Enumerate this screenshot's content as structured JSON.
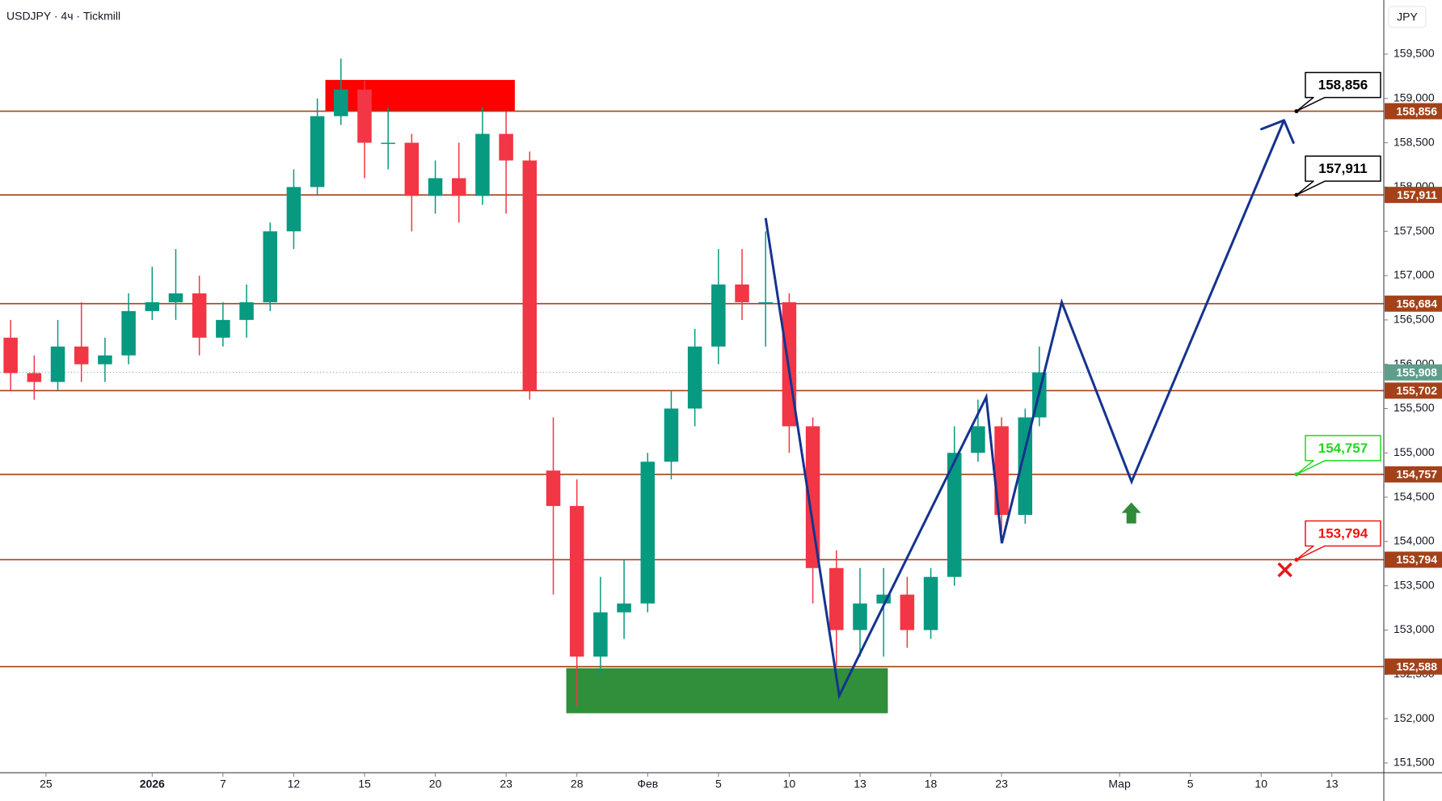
{
  "chart_data": {
    "type": "candlestick",
    "title": "USDJPY · 4ч · Tickmill",
    "currency": "JPY",
    "up_color": "#089981",
    "down_color": "#f23645",
    "xlim": [
      -1.95,
      56.7
    ],
    "ylim": [
      151390,
      160111
    ],
    "xticks": [
      {
        "value": 0,
        "label": "25"
      },
      {
        "value": 4.5,
        "label": "2026"
      },
      {
        "value": 7.5,
        "label": "7"
      },
      {
        "value": 10.5,
        "label": "12"
      },
      {
        "value": 13.5,
        "label": "15"
      },
      {
        "value": 16.5,
        "label": "20"
      },
      {
        "value": 19.5,
        "label": "23"
      },
      {
        "value": 22.5,
        "label": "28"
      },
      {
        "value": 25.5,
        "label": "Фев"
      },
      {
        "value": 28.5,
        "label": "5"
      },
      {
        "value": 31.5,
        "label": "10"
      },
      {
        "value": 34.5,
        "label": "13"
      },
      {
        "value": 37.5,
        "label": "18"
      },
      {
        "value": 40.5,
        "label": "23"
      },
      {
        "value": 45.5,
        "label": "Мар"
      },
      {
        "value": 48.5,
        "label": "5"
      },
      {
        "value": 51.5,
        "label": "10"
      },
      {
        "value": 54.5,
        "label": "13"
      }
    ],
    "yticks": [
      {
        "value": 151500,
        "label": "151,500"
      },
      {
        "value": 152000,
        "label": "152,000"
      },
      {
        "value": 152500,
        "label": "152,500"
      },
      {
        "value": 153000,
        "label": "153,000"
      },
      {
        "value": 153500,
        "label": "153,500"
      },
      {
        "value": 154000,
        "label": "154,000"
      },
      {
        "value": 154500,
        "label": "154,500"
      },
      {
        "value": 155000,
        "label": "155,000"
      },
      {
        "value": 155500,
        "label": "155,500"
      },
      {
        "value": 156000,
        "label": "156,000"
      },
      {
        "value": 156500,
        "label": "156,500"
      },
      {
        "value": 157000,
        "label": "157,000"
      },
      {
        "value": 157500,
        "label": "157,500"
      },
      {
        "value": 158000,
        "label": "158,000"
      },
      {
        "value": 158500,
        "label": "158,500"
      },
      {
        "value": 159000,
        "label": "159,000"
      },
      {
        "value": 159500,
        "label": "159,500"
      }
    ],
    "x": [
      -1.5,
      -0.5,
      0.5,
      1.5,
      2.5,
      3.5,
      4.5,
      5.5,
      6.5,
      7.5,
      8.5,
      9.5,
      10.5,
      11.5,
      12.5,
      13.5,
      14.5,
      15.5,
      16.5,
      17.5,
      18.5,
      19.5,
      20.5,
      21.5,
      22.5,
      23.5,
      24.5,
      25.5,
      26.5,
      27.5,
      28.5,
      29.5,
      30.5,
      31.5,
      32.5,
      33.5,
      34.5,
      35.5,
      36.5,
      37.5,
      38.5,
      39.5,
      40.5,
      41.5,
      42.1
    ],
    "candles": [
      [
        156300,
        156500,
        155700,
        155900
      ],
      [
        155900,
        156100,
        155600,
        155800
      ],
      [
        155800,
        156500,
        155700,
        156200
      ],
      [
        156200,
        156700,
        155800,
        156000
      ],
      [
        156000,
        156300,
        155800,
        156100
      ],
      [
        156100,
        156800,
        156000,
        156600
      ],
      [
        156600,
        157100,
        156500,
        156700
      ],
      [
        156700,
        157300,
        156500,
        156800
      ],
      [
        156800,
        157000,
        156100,
        156300
      ],
      [
        156300,
        156700,
        156200,
        156500
      ],
      [
        156500,
        156900,
        156300,
        156700
      ],
      [
        156700,
        157600,
        156600,
        157500
      ],
      [
        157500,
        158200,
        157300,
        158000
      ],
      [
        158000,
        159000,
        157900,
        158800
      ],
      [
        158800,
        159450,
        158700,
        159100
      ],
      [
        159100,
        159200,
        158100,
        158500
      ],
      [
        158500,
        158900,
        158200,
        158500
      ],
      [
        158500,
        158600,
        157500,
        157900
      ],
      [
        157900,
        158300,
        157700,
        158100
      ],
      [
        158100,
        158500,
        157600,
        157900
      ],
      [
        157900,
        158900,
        157800,
        158600
      ],
      [
        158600,
        158850,
        157700,
        158300
      ],
      [
        158300,
        158400,
        155600,
        155700
      ],
      [
        154800,
        155400,
        153400,
        154400
      ],
      [
        154400,
        154700,
        152150,
        152700
      ],
      [
        152700,
        153600,
        152500,
        153200
      ],
      [
        153200,
        153800,
        152900,
        153300
      ],
      [
        153300,
        155000,
        153200,
        154900
      ],
      [
        154900,
        155700,
        154700,
        155500
      ],
      [
        155500,
        156400,
        155300,
        156200
      ],
      [
        156200,
        157300,
        156000,
        156900
      ],
      [
        156900,
        157300,
        156500,
        156700
      ],
      [
        156700,
        157500,
        156200,
        156700
      ],
      [
        156700,
        156800,
        155000,
        155300
      ],
      [
        155300,
        155400,
        153300,
        153700
      ],
      [
        153700,
        153900,
        152600,
        153000
      ],
      [
        153000,
        153700,
        152700,
        153300
      ],
      [
        153300,
        153700,
        152700,
        153400
      ],
      [
        153400,
        153600,
        152800,
        153000
      ],
      [
        153000,
        153700,
        152900,
        153600
      ],
      [
        153600,
        155300,
        153500,
        155000
      ],
      [
        155000,
        155600,
        154900,
        155300
      ],
      [
        155300,
        155400,
        154100,
        154300
      ],
      [
        154300,
        155500,
        154200,
        155400
      ],
      [
        155400,
        156200,
        155300,
        155908
      ]
    ],
    "level_color": "#a3421a",
    "levels": [
      {
        "value": 158856,
        "label": "158,856"
      },
      {
        "value": 157911,
        "label": "157,911"
      },
      {
        "value": 156684,
        "label": "156,684"
      },
      {
        "value": 155702,
        "label": "155,702"
      },
      {
        "value": 154757,
        "label": "154,757"
      },
      {
        "value": 153794,
        "label": "153,794"
      },
      {
        "value": 152588,
        "label": "152,588"
      }
    ],
    "last_price": {
      "value": 155908,
      "label": "155,908",
      "color": "#5e9e8a"
    },
    "zones": [
      {
        "x": [
          11.84,
          19.87
        ],
        "y": [
          158856,
          159209
        ],
        "color": "#ff0000"
      },
      {
        "x": [
          22.05,
          35.68
        ],
        "y": [
          152061,
          152570
        ],
        "color": "#2f8f3a"
      }
    ],
    "forecast": {
      "x": [
        30.5,
        33.62,
        39.85,
        40.51,
        43.05,
        46.01,
        52.47
      ],
      "y": [
        157650,
        152260,
        155630,
        153980,
        156700,
        154675,
        158753
      ],
      "color": "#15338f"
    },
    "callouts": [
      {
        "x": 53.0,
        "value": 158856,
        "label": "158,856",
        "color": "#000000"
      },
      {
        "x": 53.0,
        "value": 157911,
        "label": "157,911",
        "color": "#000000"
      },
      {
        "x": 53.0,
        "value": 154757,
        "label": "154,757",
        "color": "#1fd81f"
      },
      {
        "x": 53.0,
        "value": 153794,
        "label": "153,794",
        "color": "#f01414"
      }
    ],
    "stop_marker": {
      "x": 52.51,
      "y": 153680,
      "color": "#e31b1b"
    },
    "entry_marker": {
      "x": 46.0,
      "y": 154440,
      "color": "#2e8b3a"
    }
  }
}
